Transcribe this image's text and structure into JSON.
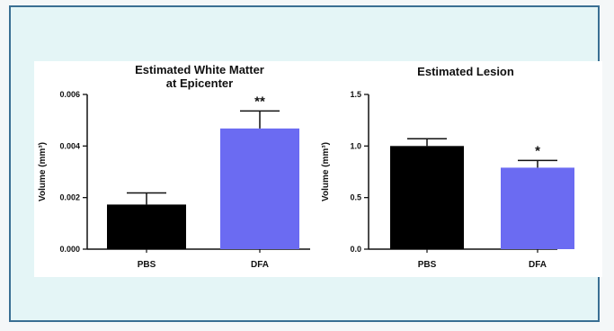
{
  "chart_data": [
    {
      "type": "bar",
      "title_lines": [
        "Estimated White Matter",
        "at Epicenter"
      ],
      "ylabel": "Volume (mm³)",
      "categories": [
        "PBS",
        "DFA"
      ],
      "values": [
        0.00173,
        0.00468
      ],
      "errors": [
        0.00045,
        0.00068
      ],
      "significance": [
        "",
        "**"
      ],
      "bar_colors": [
        "#000000",
        "#6b6bf2"
      ],
      "ylim": [
        0,
        0.006
      ],
      "yticks": [
        "0.000",
        "0.002",
        "0.004",
        "0.006"
      ],
      "ytick_values": [
        0,
        0.002,
        0.004,
        0.006
      ]
    },
    {
      "type": "bar",
      "title_lines": [
        "Estimated Lesion"
      ],
      "ylabel": "Volume (mm³)",
      "categories": [
        "PBS",
        "DFA"
      ],
      "values": [
        1.0,
        0.79
      ],
      "errors": [
        0.07,
        0.07
      ],
      "significance": [
        "",
        "*"
      ],
      "bar_colors": [
        "#000000",
        "#6b6bf2"
      ],
      "ylim": [
        0,
        1.5
      ],
      "yticks": [
        "0.0",
        "0.5",
        "1.0",
        "1.5"
      ],
      "ytick_values": [
        0,
        0.5,
        1.0,
        1.5
      ]
    }
  ]
}
